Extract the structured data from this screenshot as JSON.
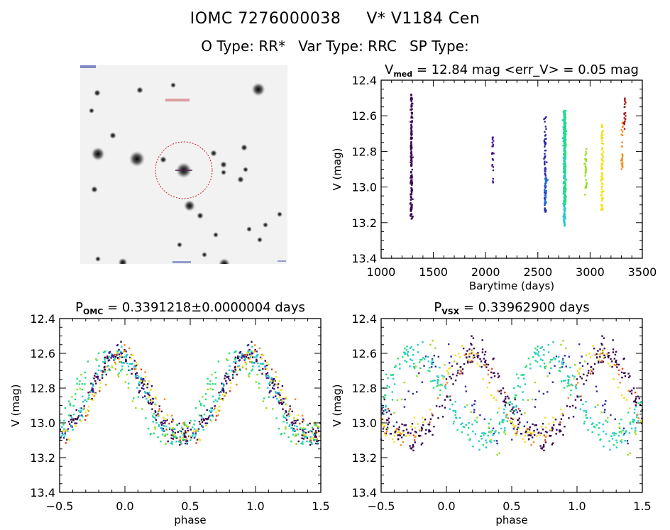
{
  "header": {
    "omc_id": "IOMC 7276000038",
    "star_name": "V* V1184 Cen",
    "o_type": "O Type: RR*",
    "var_type": "Var Type: RRC",
    "sp_type": "SP Type:"
  },
  "image_stamp": {
    "description": "sky image cutout with red dashed aperture circle around target star",
    "aperture_color": "#cc2222",
    "label_color": "#cc3333"
  },
  "season_colors": [
    "#3b0a4f",
    "#4a148c",
    "#2a2aa8",
    "#1e6fd8",
    "#22c9c9",
    "#22dd77",
    "#99dd22",
    "#f2e21a",
    "#f08a1a",
    "#e0401a",
    "#a01818"
  ],
  "chart_data": [
    {
      "id": "lightcurve-time",
      "type": "scatter",
      "title_main": "V",
      "title_sub": "med",
      "title_rest": " = 12.84 mag <err_V> = 0.05 mag",
      "xlabel": "Barytime (days)",
      "ylabel": "V (mag)",
      "xlim": [
        1000,
        3500
      ],
      "ylim": [
        13.4,
        12.4
      ],
      "y_inverted": true,
      "xticks": [
        1000,
        1500,
        2000,
        2500,
        3000,
        3500
      ],
      "xtick_labels": [
        "1000",
        "1500",
        "2000",
        "2500",
        "3000",
        "3500"
      ],
      "yticks": [
        12.4,
        12.6,
        12.8,
        13.0,
        13.2,
        13.4
      ],
      "ytick_labels": [
        "12.4",
        "12.6",
        "12.8",
        "13.0",
        "13.2",
        "13.4"
      ],
      "grid": false,
      "series": [
        {
          "name": "season-1",
          "x": 1290,
          "ymin": 12.47,
          "ymax": 13.18,
          "n": 160,
          "color_index": 0
        },
        {
          "name": "season-2",
          "x": 2070,
          "ymin": 12.72,
          "ymax": 13.0,
          "n": 20,
          "color_index": 1
        },
        {
          "name": "season-3",
          "x": 2570,
          "ymin": 12.6,
          "ymax": 13.15,
          "n": 70,
          "color_index": 2
        },
        {
          "name": "season-3b",
          "x": 2575,
          "ymin": 12.95,
          "ymax": 13.1,
          "n": 25,
          "color_index": 3
        },
        {
          "name": "season-4",
          "x": 2755,
          "ymin": 12.57,
          "ymax": 13.22,
          "n": 220,
          "color_index": 4
        },
        {
          "name": "season-4b",
          "x": 2760,
          "ymin": 12.57,
          "ymax": 13.1,
          "n": 110,
          "color_index": 5
        },
        {
          "name": "season-5",
          "x": 2960,
          "ymin": 12.78,
          "ymax": 13.05,
          "n": 30,
          "color_index": 6
        },
        {
          "name": "season-6",
          "x": 3115,
          "ymin": 12.65,
          "ymax": 13.13,
          "n": 80,
          "color_index": 7
        },
        {
          "name": "season-7",
          "x": 3305,
          "ymin": 12.62,
          "ymax": 12.9,
          "n": 25,
          "color_index": 8
        },
        {
          "name": "season-8",
          "x": 3330,
          "ymin": 12.5,
          "ymax": 12.72,
          "n": 18,
          "color_index": 10
        }
      ]
    },
    {
      "id": "phased-omc",
      "type": "scatter",
      "title_main": "P",
      "title_sub": "OMC",
      "title_rest": " = 0.3391218±0.0000004 days",
      "xlabel": "phase",
      "ylabel": "V (mag)",
      "xlim": [
        -0.5,
        1.5
      ],
      "ylim": [
        13.4,
        12.4
      ],
      "y_inverted": true,
      "xticks": [
        -0.5,
        0.0,
        0.5,
        1.0,
        1.5
      ],
      "xtick_labels": [
        "−0.5",
        "0.0",
        "0.5",
        "1.0",
        "1.5"
      ],
      "yticks": [
        12.4,
        12.6,
        12.8,
        13.0,
        13.2,
        13.4
      ],
      "ytick_labels": [
        "12.4",
        "12.6",
        "12.8",
        "13.0",
        "13.2",
        "13.4"
      ],
      "grid": false,
      "model": {
        "mean": 12.86,
        "amplitude": 0.24,
        "phase_max": 0.45
      },
      "series": [
        {
          "name": "season-1",
          "phase_shift": 0.0,
          "n": 170,
          "scatter": 0.035,
          "color_index": 0
        },
        {
          "name": "season-3",
          "phase_shift": 0.0,
          "n": 40,
          "scatter": 0.03,
          "color_index": 2
        },
        {
          "name": "season-4",
          "phase_shift": 0.01,
          "n": 110,
          "scatter": 0.035,
          "color_index": 4
        },
        {
          "name": "season-4b",
          "phase_shift": 0.1,
          "n": 60,
          "scatter": 0.04,
          "color_index": 5
        },
        {
          "name": "season-5",
          "phase_shift": 0.12,
          "n": 25,
          "scatter": 0.03,
          "color_index": 6
        },
        {
          "name": "season-6",
          "phase_shift": -0.04,
          "n": 50,
          "scatter": 0.025,
          "color_index": 7
        },
        {
          "name": "season-7",
          "phase_shift": -0.06,
          "n": 22,
          "scatter": 0.03,
          "color_index": 8
        },
        {
          "name": "season-8",
          "phase_shift": -0.05,
          "n": 12,
          "scatter": 0.03,
          "color_index": 9
        }
      ]
    },
    {
      "id": "phased-vsx",
      "type": "scatter",
      "title_main": "P",
      "title_sub": "VSX",
      "title_rest": " = 0.33962900 days",
      "xlabel": "phase",
      "ylabel": "V (mag)",
      "xlim": [
        -0.5,
        1.5
      ],
      "ylim": [
        13.4,
        12.4
      ],
      "y_inverted": true,
      "xticks": [
        -0.5,
        0.0,
        0.5,
        1.0,
        1.5
      ],
      "xtick_labels": [
        "−0.5",
        "0.0",
        "0.5",
        "1.0",
        "1.5"
      ],
      "yticks": [
        12.4,
        12.6,
        12.8,
        13.0,
        13.2,
        13.4
      ],
      "ytick_labels": [
        "12.4",
        "12.6",
        "12.8",
        "13.0",
        "13.2",
        "13.4"
      ],
      "grid": false,
      "model": {
        "mean": 12.86,
        "amplitude": 0.24,
        "phase_max": 0.45
      },
      "series": [
        {
          "name": "season-1",
          "phase_shift": -0.27,
          "n": 170,
          "scatter": 0.04,
          "color_index": 0
        },
        {
          "name": "season-3",
          "phase_shift": 0.0,
          "n": 40,
          "scatter": 0.04,
          "color_index": 2
        },
        {
          "name": "season-4",
          "phase_shift": 0.18,
          "n": 110,
          "scatter": 0.04,
          "color_index": 4
        },
        {
          "name": "season-4b",
          "phase_shift": 0.22,
          "n": 60,
          "scatter": 0.04,
          "color_index": 5
        },
        {
          "name": "season-5",
          "phase_shift": 0.05,
          "n": 25,
          "scatter": 0.04,
          "color_index": 6
        },
        {
          "name": "season-6",
          "phase_shift": -0.2,
          "n": 50,
          "scatter": 0.03,
          "color_index": 7
        },
        {
          "name": "season-7",
          "phase_shift": -0.23,
          "n": 22,
          "scatter": 0.03,
          "color_index": 8
        },
        {
          "name": "season-8",
          "phase_shift": -0.3,
          "n": 12,
          "scatter": 0.03,
          "color_index": 9
        }
      ]
    }
  ]
}
